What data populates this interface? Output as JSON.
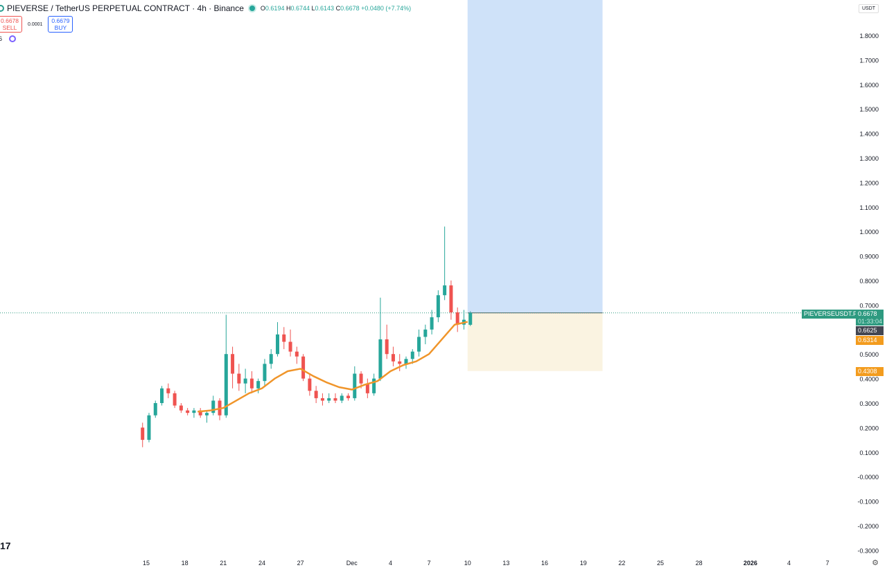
{
  "header": {
    "symbol": "PIEVERSE / TetherUS PERPETUAL CONTRACT · 4h · Binance",
    "o_label": "O",
    "o": "0.6194",
    "h_label": "H",
    "h": "0.6744",
    "l_label": "L",
    "l": "0.6143",
    "c_label": "C",
    "c": "0.6678",
    "change": "+0.0480 (+7.74%)"
  },
  "trade": {
    "sell_price": "0.6678",
    "sell_label": "SELL",
    "spread": "0.0001",
    "buy_price": "0.6679",
    "buy_label": "BUY"
  },
  "indicator": {
    "count": "6"
  },
  "currency": "USDT",
  "watermark": "17",
  "colors": {
    "up": "#26a69a",
    "down": "#ef5350",
    "ma": "#f0952a",
    "profit": "#cfe2f9",
    "loss": "#faf3e1",
    "last": "#2e9a80"
  },
  "price_labels": {
    "symbol_tag": "PIEVERSEUSDT.P",
    "last": "0.6678",
    "countdown": "01:33:04",
    "dark": "0.6625",
    "ma": "0.6314",
    "stop": "0.4308"
  },
  "chart_data": {
    "type": "candlestick",
    "ylim": [
      -0.3,
      1.85
    ],
    "y_ticks": [
      "1.8000",
      "1.7000",
      "1.6000",
      "1.5000",
      "1.4000",
      "1.3000",
      "1.2000",
      "1.1000",
      "1.0000",
      "0.9000",
      "0.8000",
      "0.7000",
      "0.5000",
      "0.4000",
      "0.3000",
      "0.2000",
      "0.1000",
      "-0.0000",
      "-0.1000",
      "-0.2000",
      "-0.3000"
    ],
    "x_ticks": [
      [
        "15",
        "2025-11-15"
      ],
      [
        "18",
        "2025-11-18"
      ],
      [
        "21",
        "2025-11-21"
      ],
      [
        "24",
        "2025-11-24"
      ],
      [
        "27",
        "2025-11-27"
      ],
      [
        "Dec",
        "2025-12-01"
      ],
      [
        "4",
        "2025-12-04"
      ],
      [
        "7",
        "2025-12-07"
      ],
      [
        "10",
        "2025-12-10"
      ],
      [
        "13",
        "2025-12-13"
      ],
      [
        "16",
        "2025-12-16"
      ],
      [
        "19",
        "2025-12-19"
      ],
      [
        "22",
        "2025-12-22"
      ],
      [
        "25",
        "2025-12-25"
      ],
      [
        "28",
        "2025-12-28"
      ],
      [
        "2026",
        "2026-01-01"
      ],
      [
        "4",
        "2026-01-04"
      ],
      [
        "7",
        "2026-01-07"
      ]
    ],
    "candles": [
      [
        "2025-11-14T12",
        0.2,
        0.22,
        0.12,
        0.15
      ],
      [
        "2025-11-15T00",
        0.15,
        0.26,
        0.14,
        0.25
      ],
      [
        "2025-11-15T12",
        0.25,
        0.31,
        0.24,
        0.3
      ],
      [
        "2025-11-16T00",
        0.3,
        0.37,
        0.29,
        0.36
      ],
      [
        "2025-11-16T12",
        0.36,
        0.38,
        0.32,
        0.34
      ],
      [
        "2025-11-17T00",
        0.34,
        0.35,
        0.28,
        0.29
      ],
      [
        "2025-11-17T12",
        0.29,
        0.3,
        0.26,
        0.27
      ],
      [
        "2025-11-18T00",
        0.27,
        0.28,
        0.25,
        0.26
      ],
      [
        "2025-11-18T12",
        0.26,
        0.28,
        0.24,
        0.27
      ],
      [
        "2025-11-19T00",
        0.27,
        0.28,
        0.24,
        0.25
      ],
      [
        "2025-11-19T12",
        0.25,
        0.27,
        0.22,
        0.26
      ],
      [
        "2025-11-20T00",
        0.26,
        0.33,
        0.25,
        0.31
      ],
      [
        "2025-11-20T12",
        0.31,
        0.32,
        0.23,
        0.25
      ],
      [
        "2025-11-21T00",
        0.25,
        0.66,
        0.24,
        0.5
      ],
      [
        "2025-11-21T12",
        0.5,
        0.53,
        0.36,
        0.42
      ],
      [
        "2025-11-22T00",
        0.42,
        0.46,
        0.35,
        0.38
      ],
      [
        "2025-11-22T12",
        0.38,
        0.44,
        0.34,
        0.4
      ],
      [
        "2025-11-23T00",
        0.4,
        0.43,
        0.34,
        0.36
      ],
      [
        "2025-11-23T12",
        0.36,
        0.4,
        0.34,
        0.39
      ],
      [
        "2025-11-24T00",
        0.39,
        0.48,
        0.37,
        0.46
      ],
      [
        "2025-11-24T12",
        0.46,
        0.52,
        0.44,
        0.5
      ],
      [
        "2025-11-25T00",
        0.5,
        0.63,
        0.49,
        0.58
      ],
      [
        "2025-11-25T12",
        0.58,
        0.61,
        0.52,
        0.55
      ],
      [
        "2025-11-26T00",
        0.55,
        0.6,
        0.49,
        0.51
      ],
      [
        "2025-11-26T12",
        0.51,
        0.53,
        0.46,
        0.49
      ],
      [
        "2025-11-27T00",
        0.49,
        0.5,
        0.39,
        0.4
      ],
      [
        "2025-11-27T12",
        0.4,
        0.42,
        0.33,
        0.35
      ],
      [
        "2025-11-28T00",
        0.35,
        0.37,
        0.3,
        0.32
      ],
      [
        "2025-11-28T12",
        0.32,
        0.34,
        0.29,
        0.31
      ],
      [
        "2025-11-29T00",
        0.31,
        0.34,
        0.3,
        0.32
      ],
      [
        "2025-11-29T12",
        0.32,
        0.34,
        0.3,
        0.31
      ],
      [
        "2025-11-30T00",
        0.31,
        0.34,
        0.3,
        0.33
      ],
      [
        "2025-11-30T12",
        0.33,
        0.34,
        0.31,
        0.32
      ],
      [
        "2025-12-01T00",
        0.32,
        0.45,
        0.31,
        0.42
      ],
      [
        "2025-12-01T12",
        0.42,
        0.43,
        0.36,
        0.38
      ],
      [
        "2025-12-02T00",
        0.38,
        0.4,
        0.32,
        0.34
      ],
      [
        "2025-12-02T12",
        0.34,
        0.42,
        0.33,
        0.4
      ],
      [
        "2025-12-03T00",
        0.4,
        0.73,
        0.39,
        0.56
      ],
      [
        "2025-12-03T12",
        0.56,
        0.62,
        0.48,
        0.5
      ],
      [
        "2025-12-04T00",
        0.5,
        0.53,
        0.45,
        0.47
      ],
      [
        "2025-12-04T12",
        0.47,
        0.5,
        0.43,
        0.46
      ],
      [
        "2025-12-05T00",
        0.46,
        0.49,
        0.44,
        0.48
      ],
      [
        "2025-12-05T12",
        0.48,
        0.52,
        0.46,
        0.51
      ],
      [
        "2025-12-06T00",
        0.51,
        0.6,
        0.49,
        0.57
      ],
      [
        "2025-12-06T12",
        0.57,
        0.62,
        0.54,
        0.6
      ],
      [
        "2025-12-07T00",
        0.6,
        0.68,
        0.58,
        0.65
      ],
      [
        "2025-12-07T12",
        0.65,
        0.76,
        0.63,
        0.74
      ],
      [
        "2025-12-08T00",
        0.74,
        1.02,
        0.72,
        0.78
      ],
      [
        "2025-12-08T12",
        0.78,
        0.8,
        0.64,
        0.67
      ],
      [
        "2025-12-09T00",
        0.67,
        0.69,
        0.59,
        0.62
      ],
      [
        "2025-12-09T12",
        0.62,
        0.68,
        0.6,
        0.64
      ],
      [
        "2025-12-10T00",
        0.6194,
        0.6744,
        0.6143,
        0.6678
      ]
    ],
    "ma": [
      [
        "2025-11-19T00",
        0.265
      ],
      [
        "2025-11-20T00",
        0.27
      ],
      [
        "2025-11-21T00",
        0.28
      ],
      [
        "2025-11-22T00",
        0.31
      ],
      [
        "2025-11-23T00",
        0.34
      ],
      [
        "2025-11-24T00",
        0.36
      ],
      [
        "2025-11-25T00",
        0.4
      ],
      [
        "2025-11-26T00",
        0.43
      ],
      [
        "2025-11-27T00",
        0.44
      ],
      [
        "2025-11-28T00",
        0.41
      ],
      [
        "2025-11-29T00",
        0.385
      ],
      [
        "2025-11-30T00",
        0.365
      ],
      [
        "2025-12-01T00",
        0.355
      ],
      [
        "2025-12-02T00",
        0.375
      ],
      [
        "2025-12-03T00",
        0.39
      ],
      [
        "2025-12-04T00",
        0.43
      ],
      [
        "2025-12-05T00",
        0.455
      ],
      [
        "2025-12-06T00",
        0.47
      ],
      [
        "2025-12-07T00",
        0.5
      ],
      [
        "2025-12-08T00",
        0.56
      ],
      [
        "2025-12-09T00",
        0.62
      ],
      [
        "2025-12-10T00",
        0.6314
      ]
    ],
    "position": {
      "start": "2025-12-10T00",
      "end": "2025-12-20T12",
      "entry": 0.6678,
      "stop": 0.4308,
      "target": 1.92
    }
  }
}
